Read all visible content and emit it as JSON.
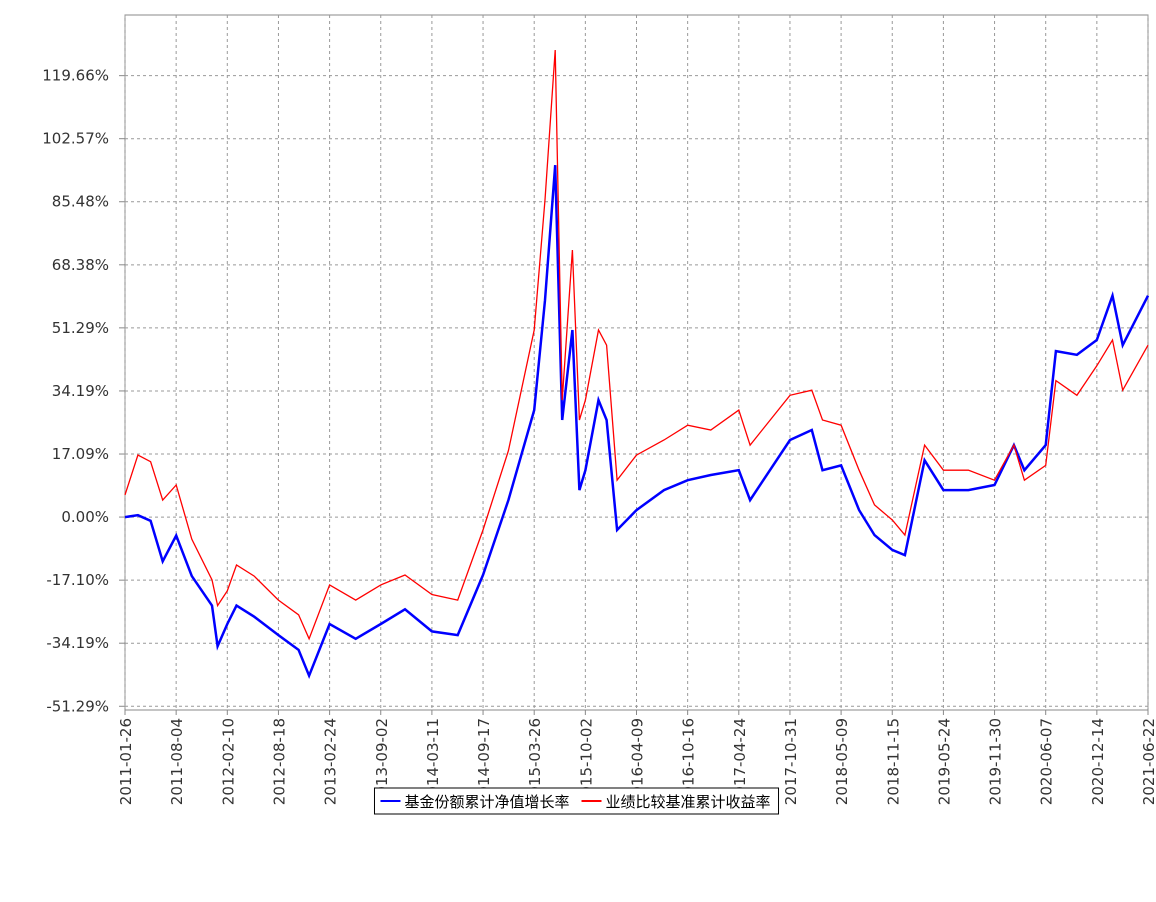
{
  "chart_data": {
    "type": "line",
    "x": [
      "2011-01-26",
      "2011-03-15",
      "2011-05-01",
      "2011-06-15",
      "2011-08-04",
      "2011-10-01",
      "2011-12-15",
      "2012-01-05",
      "2012-02-10",
      "2012-03-15",
      "2012-05-20",
      "2012-08-18",
      "2012-11-01",
      "2012-12-10",
      "2013-02-24",
      "2013-06-01",
      "2013-09-02",
      "2013-12-01",
      "2014-03-11",
      "2014-06-15",
      "2014-09-17",
      "2014-12-20",
      "2015-03-26",
      "2015-05-05",
      "2015-06-12",
      "2015-07-08",
      "2015-08-15",
      "2015-09-10",
      "2015-10-02",
      "2015-11-20",
      "2015-12-20",
      "2016-01-28",
      "2016-04-09",
      "2016-07-20",
      "2016-10-16",
      "2017-01-10",
      "2017-04-24",
      "2017-06-05",
      "2017-10-31",
      "2018-01-20",
      "2018-03-01",
      "2018-05-09",
      "2018-07-15",
      "2018-09-10",
      "2018-11-15",
      "2019-01-01",
      "2019-03-15",
      "2019-05-24",
      "2019-08-25",
      "2019-11-30",
      "2020-02-10",
      "2020-03-20",
      "2020-06-07",
      "2020-07-15",
      "2020-10-01",
      "2020-12-14",
      "2021-02-10",
      "2021-03-20",
      "2021-06-22"
    ],
    "series": [
      {
        "name": "基金份额累计净值增长率",
        "color": "#0000ff",
        "values": [
          0,
          0.5,
          -1,
          -12,
          -5,
          -16,
          -24,
          -35,
          -29,
          -24,
          -27,
          -32,
          -36,
          -43,
          -29,
          -33,
          -29,
          -25,
          -31,
          -32,
          -15.7,
          4.6,
          29,
          58.8,
          95.4,
          26.3,
          50.7,
          7.3,
          12.7,
          31.7,
          26.3,
          -3.5,
          1.9,
          7.3,
          10,
          11.4,
          12.7,
          4.6,
          20.9,
          23.6,
          12.7,
          14,
          1.9,
          -4.9,
          -8.9,
          -10.3,
          15.4,
          7.3,
          7.3,
          8.7,
          19.5,
          12.7,
          19.5,
          45,
          44,
          48,
          60,
          46.6,
          60
        ]
      },
      {
        "name": "业绩比较基准累计收益率",
        "color": "#ff0000",
        "values": [
          6,
          16.8,
          15,
          4.6,
          8.7,
          -6,
          -17,
          -24,
          -20,
          -13,
          -16,
          -22.5,
          -26.5,
          -33,
          -18.4,
          -22.5,
          -18.4,
          -15.7,
          -21,
          -22.5,
          -3.5,
          18,
          50.7,
          86,
          126.6,
          31.7,
          72.4,
          26.3,
          31.7,
          50.7,
          46.6,
          10,
          16.8,
          20.9,
          24.9,
          23.6,
          29,
          19.5,
          33,
          34.4,
          26.3,
          24.9,
          12.7,
          3.3,
          -0.8,
          -4.9,
          19.5,
          12.7,
          12.7,
          10,
          19.5,
          10,
          14,
          37,
          33,
          41,
          48,
          34.4,
          46.6
        ]
      }
    ],
    "xlim": [
      "2011-01-26",
      "2021-06-22"
    ],
    "xticks": [
      "2011-01-26",
      "2011-08-04",
      "2012-02-10",
      "2012-08-18",
      "2013-02-24",
      "2013-09-02",
      "2014-03-11",
      "2014-09-17",
      "2015-03-26",
      "2015-10-02",
      "2016-04-09",
      "2016-10-16",
      "2017-04-24",
      "2017-10-31",
      "2018-05-09",
      "2018-11-15",
      "2019-05-24",
      "2019-11-30",
      "2020-06-07",
      "2020-12-14",
      "2021-06-22"
    ],
    "ylim": [
      -52.3,
      136.1
    ],
    "yticks": [
      {
        "value": -51.29,
        "label": "-51.29%"
      },
      {
        "value": -34.19,
        "label": "-34.19%"
      },
      {
        "value": -17.1,
        "label": "-17.10%"
      },
      {
        "value": 0,
        "label": "0.00%"
      },
      {
        "value": 17.09,
        "label": "17.09%"
      },
      {
        "value": 34.19,
        "label": "34.19%"
      },
      {
        "value": 51.29,
        "label": "51.29%"
      },
      {
        "value": 68.38,
        "label": "68.38%"
      },
      {
        "value": 85.48,
        "label": "85.48%"
      },
      {
        "value": 102.57,
        "label": "102.57%"
      },
      {
        "value": 119.66,
        "label": "119.66%"
      }
    ],
    "grid": true
  }
}
